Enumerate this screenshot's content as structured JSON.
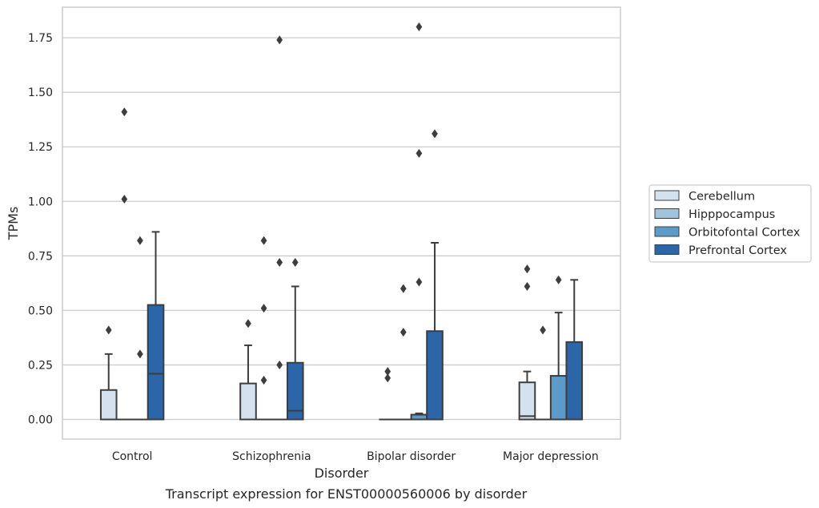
{
  "caption": "Transcript expression for ENST00000560006 by disorder",
  "chart_data": {
    "type": "box",
    "xlabel": "Disorder",
    "ylabel": "TPMs",
    "ylim": [
      -0.09,
      1.89
    ],
    "yticks": [
      0.0,
      0.25,
      0.5,
      0.75,
      1.0,
      1.25,
      1.5,
      1.75
    ],
    "ytick_labels": [
      "0.00",
      "0.25",
      "0.50",
      "0.75",
      "1.00",
      "1.25",
      "1.50",
      "1.75"
    ],
    "grid": "horizontal",
    "legend_placement": "right",
    "categories": [
      "Control",
      "Schizophrenia",
      "Bipolar disorder",
      "Major depression"
    ],
    "series": [
      {
        "name": "Cerebellum",
        "color": "#d4e2f0",
        "boxes": [
          {
            "category": "Control",
            "q1": 0.0,
            "median": 0.0,
            "q3": 0.135,
            "whisker_low": 0.0,
            "whisker_high": 0.3,
            "fliers": [
              0.41
            ]
          },
          {
            "category": "Schizophrenia",
            "q1": 0.0,
            "median": 0.0,
            "q3": 0.165,
            "whisker_low": 0.0,
            "whisker_high": 0.34,
            "fliers": [
              0.44
            ]
          },
          {
            "category": "Bipolar disorder",
            "q1": 0.0,
            "median": 0.0,
            "q3": 0.0,
            "whisker_low": 0.0,
            "whisker_high": 0.0,
            "fliers": [
              0.19,
              0.22
            ]
          },
          {
            "category": "Major depression",
            "q1": 0.0,
            "median": 0.015,
            "q3": 0.17,
            "whisker_low": 0.0,
            "whisker_high": 0.22,
            "fliers": [
              0.61,
              0.69
            ]
          }
        ]
      },
      {
        "name": "Hipppocampus",
        "color": "#9ec4de",
        "boxes": [
          {
            "category": "Control",
            "q1": 0.0,
            "median": 0.0,
            "q3": 0.0,
            "whisker_low": 0.0,
            "whisker_high": 0.0,
            "fliers": [
              1.01,
              1.41
            ]
          },
          {
            "category": "Schizophrenia",
            "q1": 0.0,
            "median": 0.0,
            "q3": 0.0,
            "whisker_low": 0.0,
            "whisker_high": 0.0,
            "fliers": [
              0.18,
              0.51,
              0.82
            ]
          },
          {
            "category": "Bipolar disorder",
            "q1": 0.0,
            "median": 0.0,
            "q3": 0.0,
            "whisker_low": 0.0,
            "whisker_high": 0.0,
            "fliers": [
              0.4,
              0.6
            ]
          },
          {
            "category": "Major depression",
            "q1": 0.0,
            "median": 0.0,
            "q3": 0.0,
            "whisker_low": 0.0,
            "whisker_high": 0.0,
            "fliers": [
              0.41
            ]
          }
        ]
      },
      {
        "name": "Orbitofontal Cortex",
        "color": "#5a9bc9",
        "boxes": [
          {
            "category": "Control",
            "q1": 0.0,
            "median": 0.0,
            "q3": 0.0,
            "whisker_low": 0.0,
            "whisker_high": 0.0,
            "fliers": [
              0.3,
              0.82
            ]
          },
          {
            "category": "Schizophrenia",
            "q1": 0.0,
            "median": 0.0,
            "q3": 0.0,
            "whisker_low": 0.0,
            "whisker_high": 0.0,
            "fliers": [
              0.25,
              0.72,
              1.74
            ]
          },
          {
            "category": "Bipolar disorder",
            "q1": 0.0,
            "median": 0.0,
            "q3": 0.022,
            "whisker_low": 0.0,
            "whisker_high": 0.028,
            "fliers": [
              0.63,
              1.22,
              1.8
            ]
          },
          {
            "category": "Major depression",
            "q1": 0.0,
            "median": 0.0,
            "q3": 0.2,
            "whisker_low": 0.0,
            "whisker_high": 0.49,
            "fliers": [
              0.64
            ]
          }
        ]
      },
      {
        "name": "Prefrontal Cortex",
        "color": "#2a66a8",
        "boxes": [
          {
            "category": "Control",
            "q1": 0.0,
            "median": 0.21,
            "q3": 0.525,
            "whisker_low": 0.0,
            "whisker_high": 0.86,
            "fliers": []
          },
          {
            "category": "Schizophrenia",
            "q1": 0.0,
            "median": 0.04,
            "q3": 0.26,
            "whisker_low": 0.0,
            "whisker_high": 0.61,
            "fliers": [
              0.72
            ]
          },
          {
            "category": "Bipolar disorder",
            "q1": 0.0,
            "median": 0.0,
            "q3": 0.405,
            "whisker_low": 0.0,
            "whisker_high": 0.81,
            "fliers": [
              1.31
            ]
          },
          {
            "category": "Major depression",
            "q1": 0.0,
            "median": 0.0,
            "q3": 0.355,
            "whisker_low": 0.0,
            "whisker_high": 0.64,
            "fliers": []
          }
        ]
      }
    ]
  }
}
